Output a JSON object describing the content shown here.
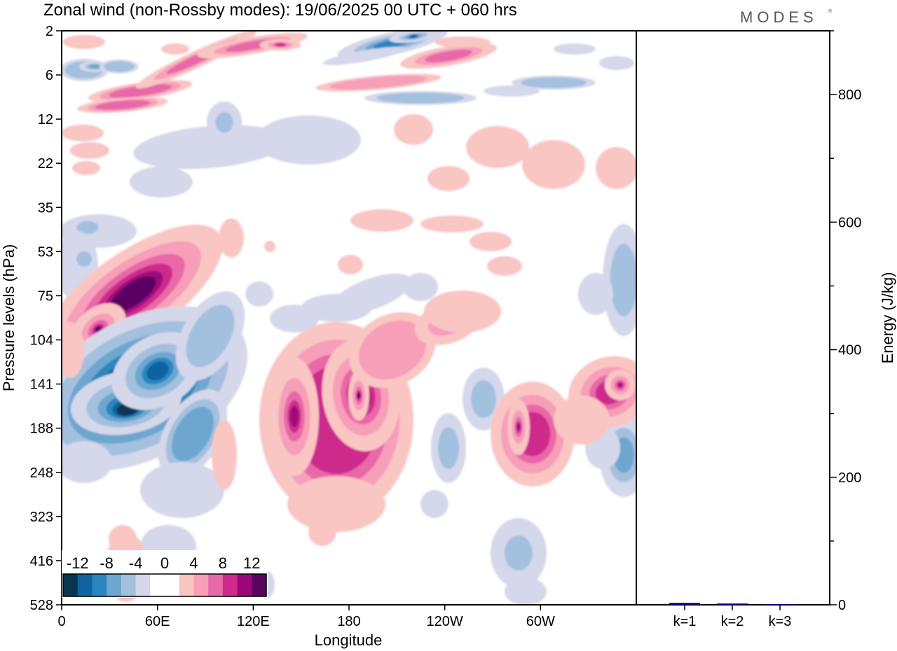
{
  "header": {
    "title": "Zonal wind (non-Rossby modes):  19/06/2025  00 UTC  + 060 hrs",
    "logo": "MODES"
  },
  "chart_data": [
    {
      "type": "heatmap",
      "title": "Zonal wind (non-Rossby modes):  19/06/2025  00 UTC  + 060 hrs",
      "xlabel": "Longitude",
      "ylabel": "Pressure levels (hPa)",
      "x_ticks": [
        "0",
        "60E",
        "120E",
        "180",
        "120W",
        "60W"
      ],
      "y_ticks": [
        "2",
        "6",
        "12",
        "22",
        "35",
        "53",
        "75",
        "104",
        "141",
        "188",
        "248",
        "323",
        "416",
        "528"
      ],
      "xlim": [
        0,
        360
      ],
      "colorbar": {
        "labels": [
          "-12",
          "-8",
          "-4",
          "0",
          "4",
          "8",
          "12"
        ],
        "colors": [
          "#083550",
          "#0e63a0",
          "#2b85c0",
          "#6da6cf",
          "#a4c0df",
          "#d5d8ea",
          "#ffffff",
          "#ffffff",
          "#f9c6c4",
          "#f79eb9",
          "#e968a7",
          "#cd2a8c",
          "#9c077a",
          "#5a0462"
        ]
      },
      "fields": [
        {
          "lon": 50,
          "level": "141",
          "value": -14
        },
        {
          "lon": 35,
          "level": "104",
          "value": 11
        },
        {
          "lon": 183,
          "level": "141",
          "value": 11
        },
        {
          "lon": 145,
          "level": "141",
          "value": 8
        },
        {
          "lon": 284,
          "level": "188",
          "value": 8
        },
        {
          "lon": 345,
          "level": "141",
          "value": 6
        },
        {
          "lon": 210,
          "level": "2",
          "value": -9
        },
        {
          "lon": 140,
          "level": "2",
          "value": 7
        }
      ]
    },
    {
      "type": "bar",
      "ylabel": "Energy (J/kg)",
      "categories": [
        "k=1",
        "k=2",
        "k=3"
      ],
      "values": [
        3,
        2,
        1
      ],
      "ylim": [
        0,
        900
      ],
      "y_ticks": [
        "0",
        "200",
        "400",
        "600",
        "800"
      ],
      "bar_color": "#00008b"
    }
  ]
}
